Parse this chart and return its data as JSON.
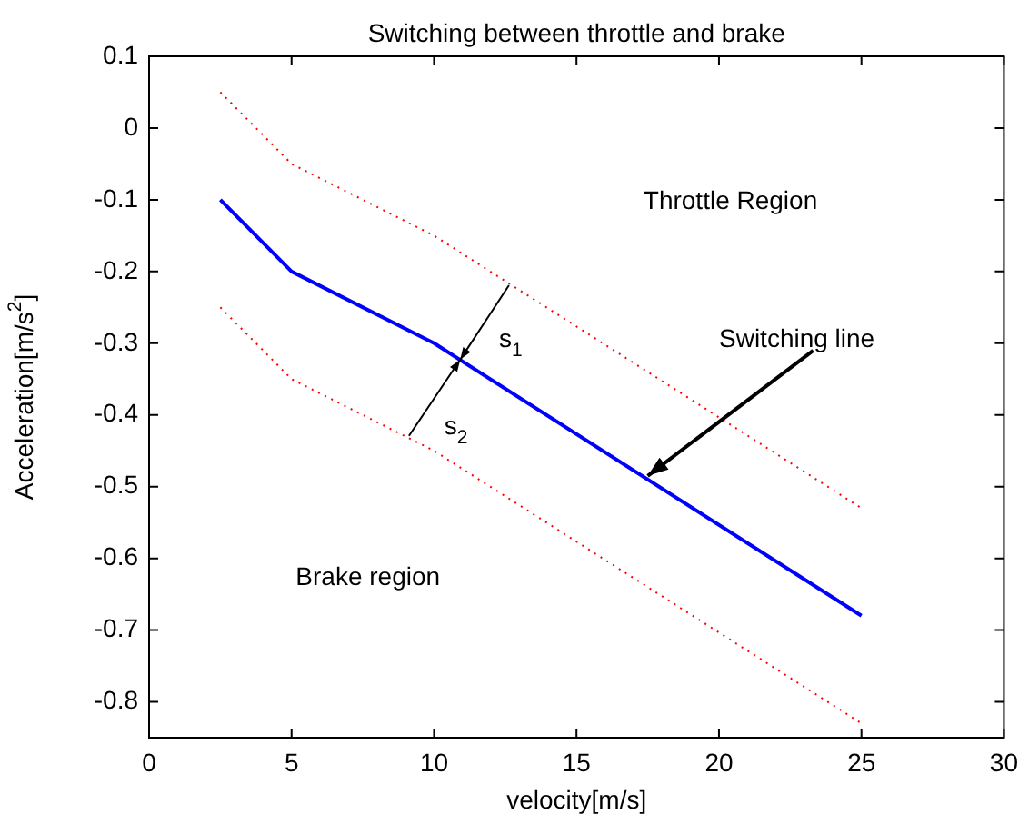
{
  "chart_data": {
    "type": "line",
    "title": "Switching between throttle and brake",
    "xlabel": "velocity[m/s]",
    "ylabel": "Acceleration[m/s$^{2}$]",
    "series": [
      {
        "color": "#0000ff",
        "x": [
          2.5,
          5,
          10,
          25
        ],
        "values": [
          -0.1,
          -0.2,
          -0.3,
          -0.68
        ],
        "line_style": "solid"
      },
      {
        "color": "#ff0000",
        "x": [
          2.5,
          5,
          10,
          25
        ],
        "values": [
          0.05,
          -0.05,
          -0.15,
          -0.53
        ],
        "line_style": "dotted"
      },
      {
        "color": "#ff0000",
        "x": [
          2.5,
          5,
          10,
          25
        ],
        "values": [
          -0.25,
          -0.35,
          -0.45,
          -0.83
        ],
        "line_style": "dotted"
      }
    ],
    "annotations": [
      "Throttle Region",
      {
        "text": "Switching line",
        "x": 17.5,
        "y": -0.485
      },
      "s$_{1}$",
      "s$_{2}$",
      "Brake region"
    ],
    "xlim": [
      0,
      30
    ],
    "xticks": [
      0,
      5,
      10,
      15,
      20,
      25,
      30
    ],
    "ylim": [
      -0.85,
      0.1
    ],
    "yticks": [
      -0.8,
      -0.7,
      -0.6,
      -0.5,
      -0.4,
      -0.3,
      -0.2,
      -0.1,
      0,
      0.1
    ],
    "grid": false,
    "legend": false,
    "marker": "none"
  }
}
